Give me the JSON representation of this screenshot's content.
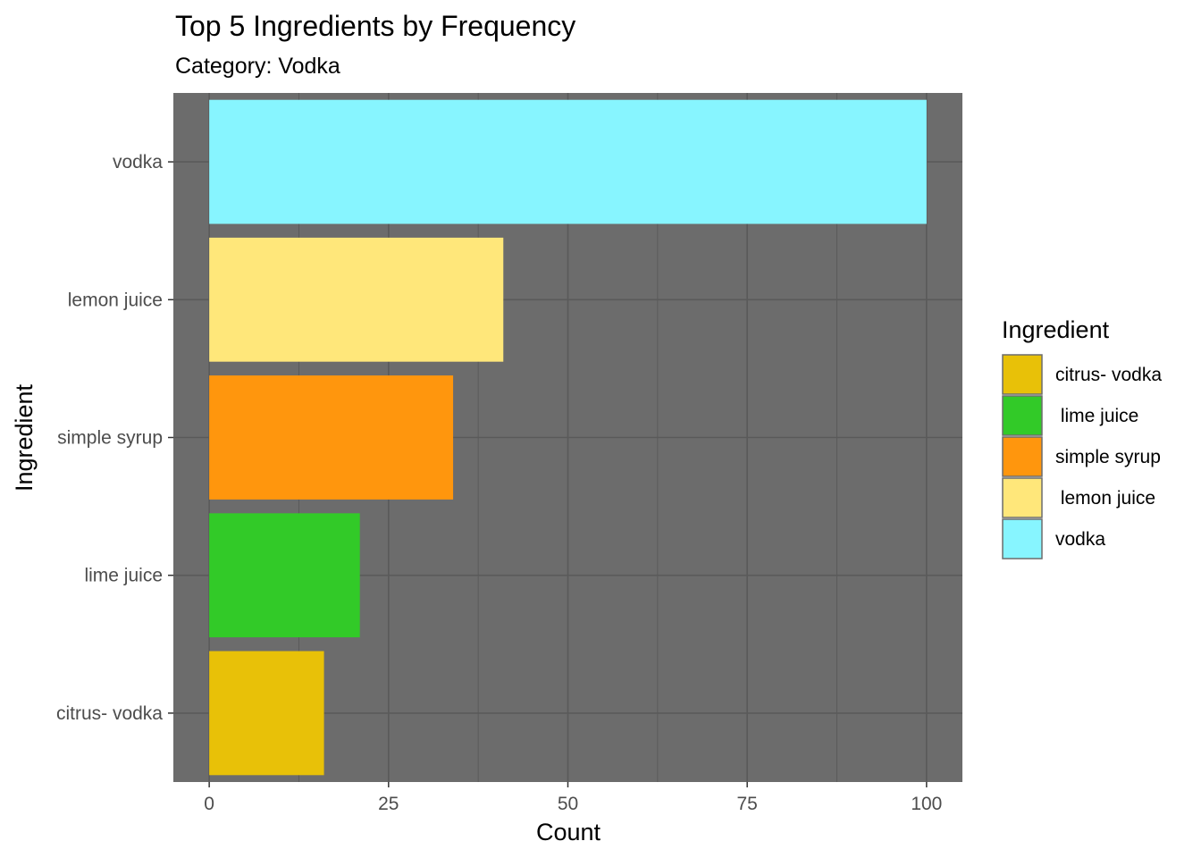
{
  "chart_data": {
    "type": "bar",
    "orientation": "horizontal",
    "title": "Top 5 Ingredients by Frequency",
    "subtitle": "Category: Vodka",
    "xlabel": "Count",
    "ylabel": "Ingredient",
    "xlim": [
      -5,
      105
    ],
    "x_ticks": [
      0,
      25,
      50,
      75,
      100
    ],
    "grid": true,
    "legend_position": "right",
    "categories": [
      "vodka",
      "lemon juice",
      "simple syrup",
      "lime juice",
      "citrus- vodka"
    ],
    "values": [
      100,
      41,
      34,
      21,
      16
    ],
    "colors": [
      "#87F5FF",
      "#FFE77A",
      "#FF960D",
      "#32CA28",
      "#E8C108"
    ],
    "legend": {
      "title": "Ingredient",
      "items": [
        {
          "label": "citrus- vodka",
          "color": "#E8C108"
        },
        {
          "label": " lime juice",
          "color": "#32CA28"
        },
        {
          "label": "simple syrup",
          "color": "#FF960D"
        },
        {
          "label": " lemon juice",
          "color": "#FFE77A"
        },
        {
          "label": "vodka",
          "color": "#87F5FF"
        }
      ]
    },
    "panel_color": "#6C6C6C",
    "grid_color": "#5A5A5A"
  }
}
